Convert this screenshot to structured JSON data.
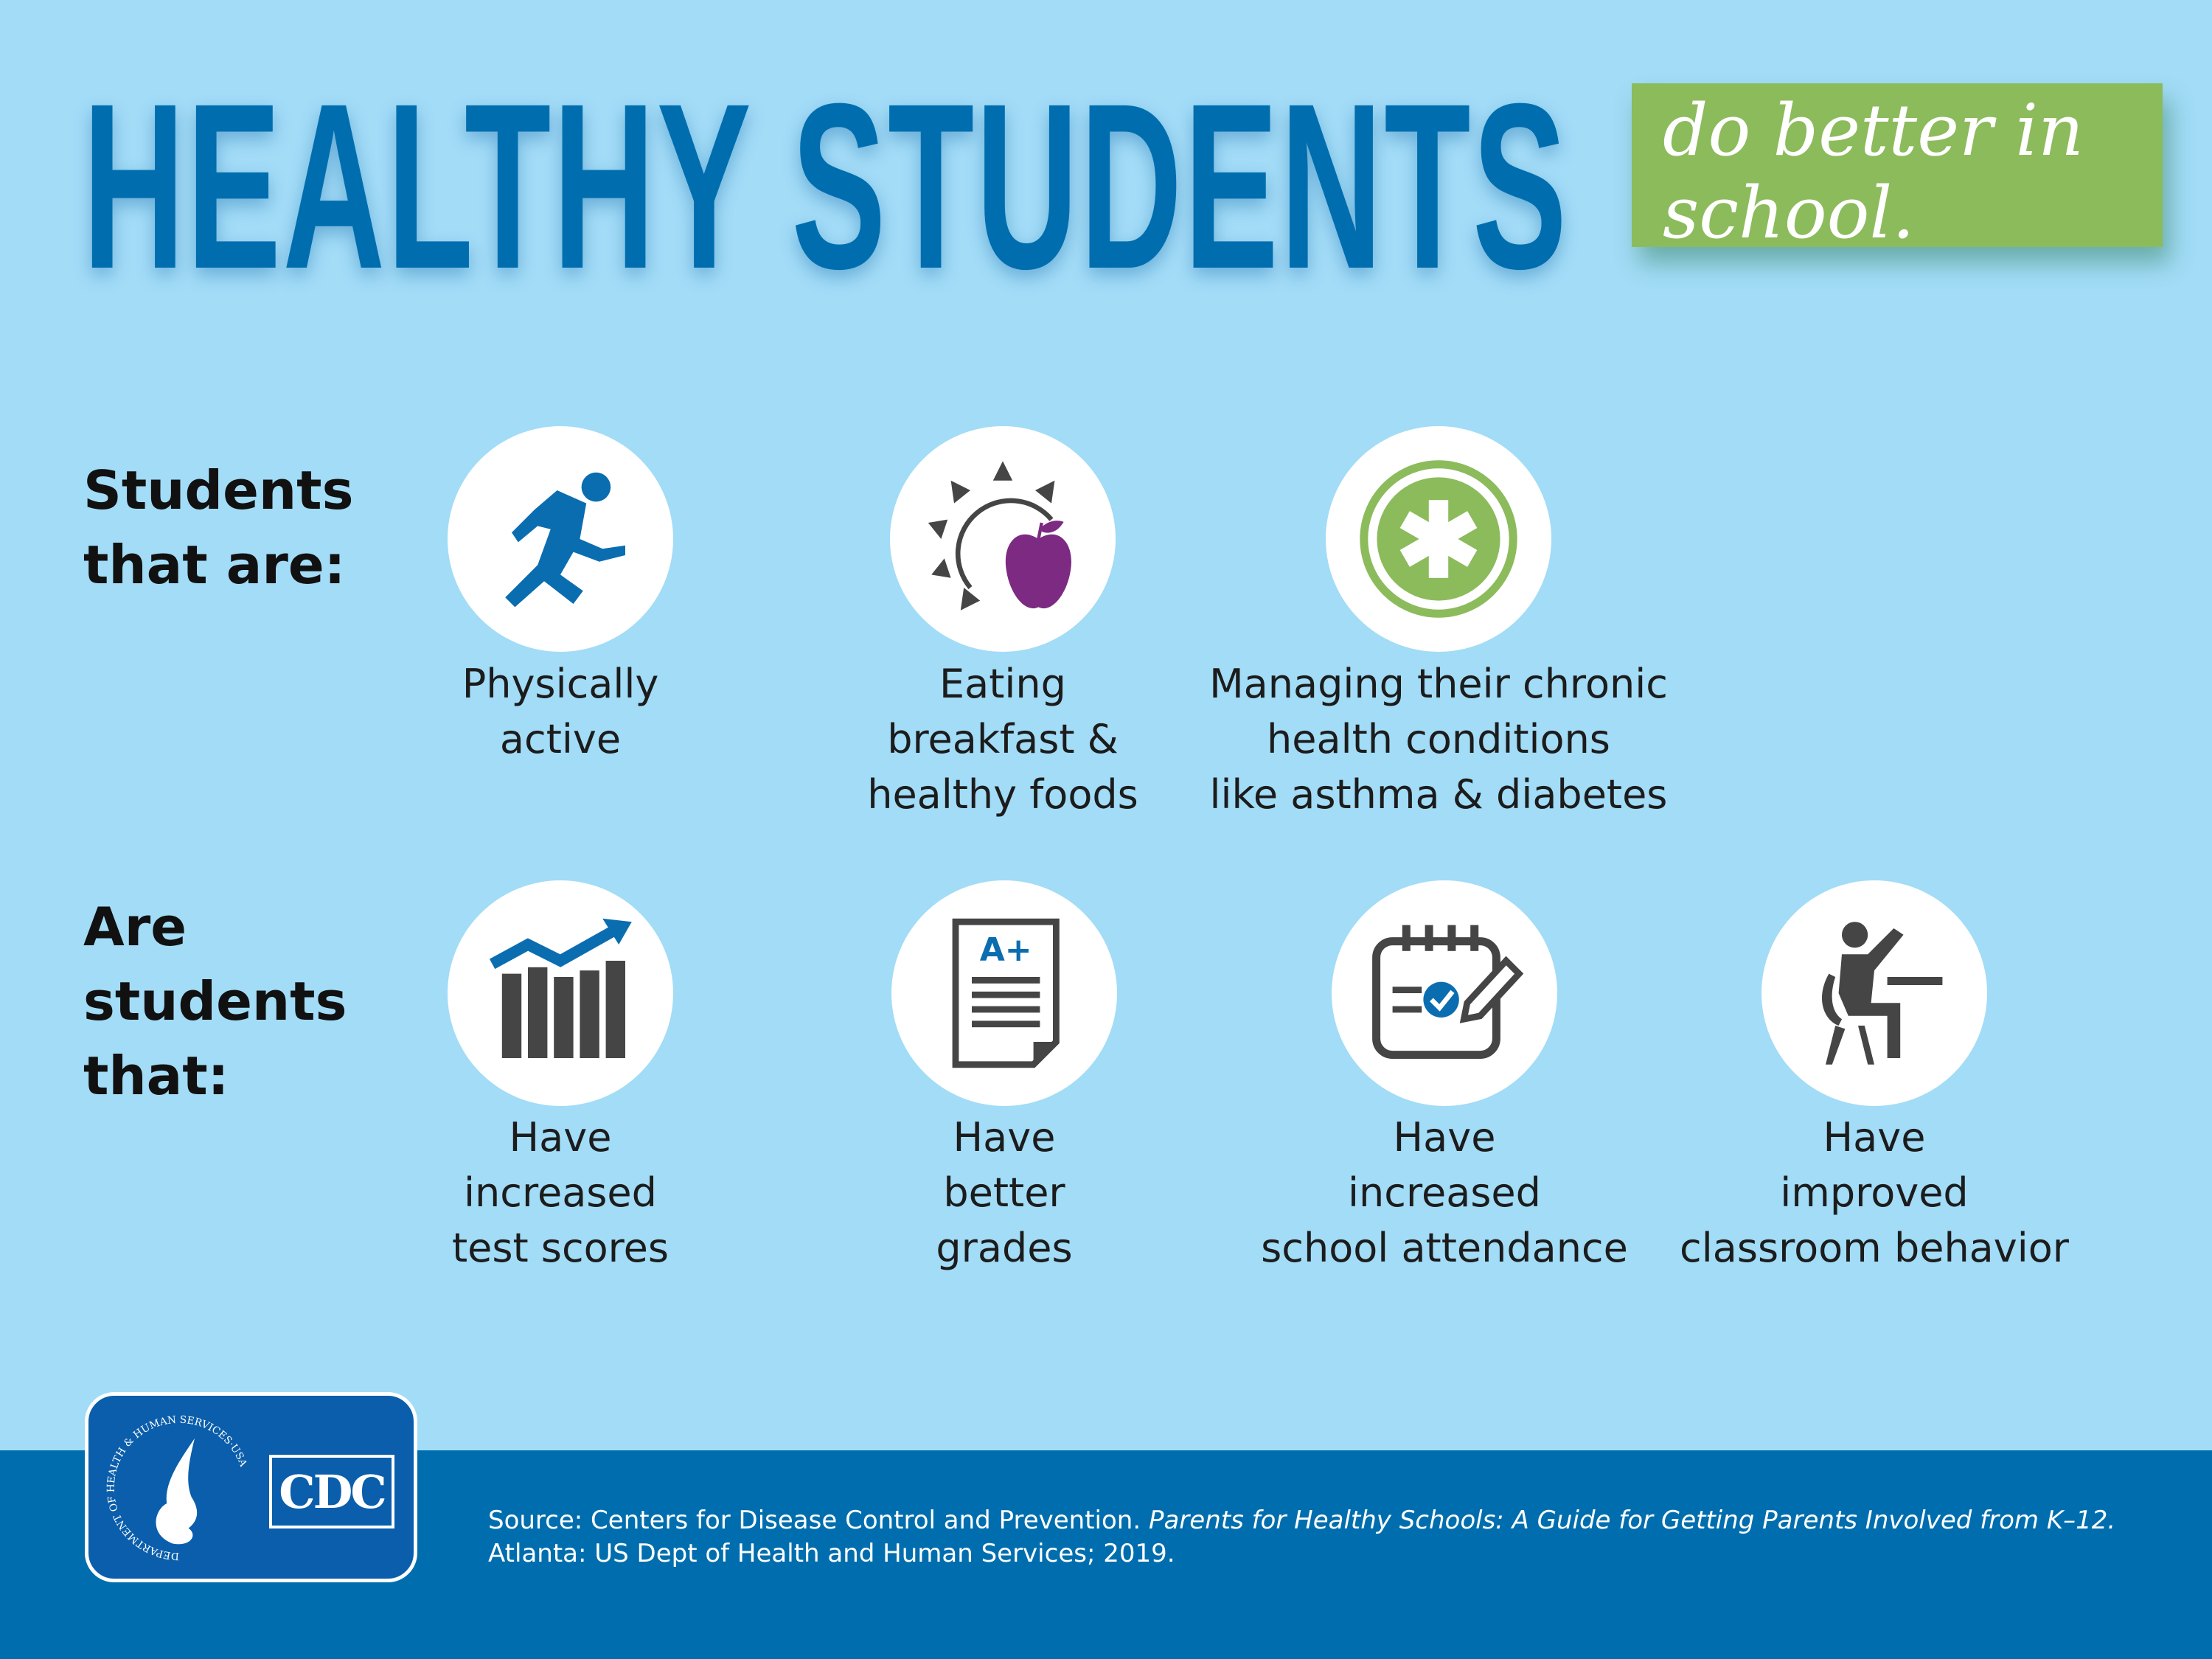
{
  "header": {
    "title": "HEALTHY STUDENTS",
    "tagline_line1": "do better in",
    "tagline_line2": "school."
  },
  "row1": {
    "label_lines": [
      "Students",
      "that are:"
    ],
    "items": [
      {
        "icon": "runner-icon",
        "lines": [
          "Physically",
          "active"
        ]
      },
      {
        "icon": "sun-apple-icon",
        "lines": [
          "Eating",
          "breakfast &",
          "healthy foods"
        ]
      },
      {
        "icon": "medical-star-icon",
        "lines": [
          "Managing their chronic",
          "health conditions",
          "like asthma & diabetes"
        ]
      }
    ]
  },
  "row2": {
    "label_lines": [
      "Are",
      "students",
      "that:"
    ],
    "items": [
      {
        "icon": "bar-chart-up-icon",
        "lines": [
          "Have",
          "increased",
          "test scores"
        ]
      },
      {
        "icon": "graded-paper-icon",
        "lines": [
          "Have",
          "better",
          "grades"
        ],
        "grade": "A+"
      },
      {
        "icon": "calendar-check-icon",
        "lines": [
          "Have",
          "increased",
          "school attendance"
        ]
      },
      {
        "icon": "student-raising-hand-icon",
        "lines": [
          "Have",
          "improved",
          "classroom behavior"
        ]
      }
    ]
  },
  "footer": {
    "logo_text": "CDC",
    "hhs_seal_text": "DEPARTMENT OF HEALTH & HUMAN SERVICES·USA",
    "source_plain": "Source: Centers for Disease Control and Prevention. ",
    "source_italic": "Parents for Healthy Schools: A Guide for Getting Parents Involved from K–12.",
    "source_line2": "Atlanta: US Dept of Health and Human Services; 2019."
  },
  "colors": {
    "background": "#a2dcf7",
    "title": "#006eae",
    "tag": "#8cbb5c",
    "footer": "#006eae",
    "icon_blue": "#0a6db0",
    "icon_gray": "#454545",
    "apple": "#7c2a82",
    "green": "#8cbb5c"
  }
}
